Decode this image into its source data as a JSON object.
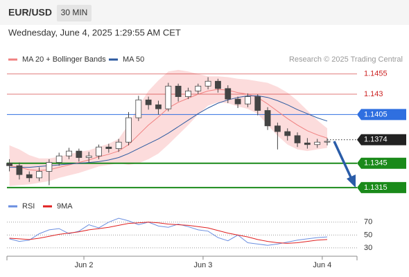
{
  "header": {
    "symbol": "EUR/USD",
    "timeframe": "30 MIN",
    "datetime": "Wednesday, June 4, 2025 1:29:55 AM CET"
  },
  "chart_data": [
    {
      "type": "candlestick",
      "source": "Research © 2025 Trading Central",
      "x": [
        -15,
        -13,
        -11,
        -9,
        -7,
        -5,
        -3,
        -1,
        1,
        3,
        5,
        7,
        9,
        11,
        13,
        15,
        17,
        19,
        21,
        23,
        25,
        27,
        29,
        31,
        33,
        35,
        37,
        39,
        41,
        43,
        45,
        47,
        49
      ],
      "open": [
        1.1345,
        1.1342,
        1.1331,
        1.1327,
        1.1335,
        1.1346,
        1.1354,
        1.136,
        1.1352,
        1.1354,
        1.1365,
        1.1363,
        1.1371,
        1.1401,
        1.1423,
        1.1417,
        1.1412,
        1.144,
        1.1427,
        1.1434,
        1.144,
        1.1446,
        1.1437,
        1.1424,
        1.1418,
        1.1427,
        1.141,
        1.1391,
        1.1384,
        1.1379,
        1.137,
        1.1368,
        1.1371
      ],
      "high": [
        1.135,
        1.1346,
        1.1335,
        1.134,
        1.135,
        1.1358,
        1.1364,
        1.1363,
        1.1359,
        1.1368,
        1.1369,
        1.1375,
        1.1408,
        1.1428,
        1.1427,
        1.1422,
        1.1444,
        1.1443,
        1.1438,
        1.1443,
        1.1451,
        1.1449,
        1.1441,
        1.1427,
        1.1431,
        1.143,
        1.1414,
        1.1395,
        1.1388,
        1.1383,
        1.1376,
        1.1375,
        1.1376
      ],
      "low": [
        1.1335,
        1.1325,
        1.1322,
        1.1323,
        1.1318,
        1.1342,
        1.135,
        1.1347,
        1.1346,
        1.135,
        1.1358,
        1.1359,
        1.1367,
        1.1397,
        1.1411,
        1.1405,
        1.1409,
        1.1421,
        1.1424,
        1.143,
        1.1436,
        1.1432,
        1.1419,
        1.1413,
        1.1414,
        1.1404,
        1.1386,
        1.1362,
        1.1373,
        1.1365,
        1.1363,
        1.1364,
        1.1367
      ],
      "close": [
        1.1342,
        1.1331,
        1.1327,
        1.1335,
        1.1346,
        1.1354,
        1.136,
        1.1352,
        1.1354,
        1.1365,
        1.1363,
        1.1371,
        1.1401,
        1.1423,
        1.1417,
        1.1412,
        1.144,
        1.1427,
        1.1434,
        1.144,
        1.1446,
        1.1437,
        1.1424,
        1.1418,
        1.1427,
        1.141,
        1.1391,
        1.1384,
        1.1379,
        1.137,
        1.1368,
        1.1371,
        1.1372
      ],
      "up_color": "#ffffff",
      "down_color": "#444444",
      "wick_color": "#444444",
      "series": [
        {
          "name": "MA 20 + Bollinger Bands",
          "color": "#f08080",
          "band_color": "#fbd3d3",
          "values": [
            1.1342,
            1.134,
            1.1337,
            1.1336,
            1.1337,
            1.134,
            1.1343,
            1.1346,
            1.1349,
            1.1353,
            1.1356,
            1.136,
            1.1368,
            1.138,
            1.1392,
            1.1402,
            1.1413,
            1.142,
            1.1425,
            1.143,
            1.1434,
            1.1436,
            1.1435,
            1.1432,
            1.143,
            1.1426,
            1.1418,
            1.1409,
            1.14,
            1.1392,
            1.1385,
            1.138,
            1.1376
          ],
          "upper": [
            1.1367,
            1.1362,
            1.1355,
            1.1351,
            1.1351,
            1.1353,
            1.1356,
            1.1359,
            1.1361,
            1.1365,
            1.1369,
            1.1375,
            1.1393,
            1.1415,
            1.1434,
            1.1447,
            1.1458,
            1.146,
            1.1458,
            1.1455,
            1.1452,
            1.1452,
            1.1451,
            1.1449,
            1.1448,
            1.1446,
            1.1444,
            1.1439,
            1.1432,
            1.1422,
            1.141,
            1.1398,
            1.1388
          ],
          "lower": [
            1.1317,
            1.1318,
            1.1319,
            1.1321,
            1.1323,
            1.1327,
            1.133,
            1.1333,
            1.1337,
            1.1341,
            1.1343,
            1.1345,
            1.1343,
            1.1345,
            1.135,
            1.1357,
            1.1368,
            1.138,
            1.1392,
            1.1405,
            1.1416,
            1.142,
            1.1419,
            1.1415,
            1.1412,
            1.1406,
            1.1392,
            1.1379,
            1.1368,
            1.1362,
            1.136,
            1.1362,
            1.1364
          ]
        },
        {
          "name": "MA 50",
          "color": "#2c5aa0",
          "values": [
            1.134,
            1.134,
            1.134,
            1.1341,
            1.1342,
            1.1343,
            1.1344,
            1.1345,
            1.1346,
            1.1347,
            1.1349,
            1.1352,
            1.1357,
            1.1363,
            1.1369,
            1.1375,
            1.1382,
            1.139,
            1.1398,
            1.1406,
            1.1413,
            1.1419,
            1.1423,
            1.1426,
            1.1428,
            1.1428,
            1.1426,
            1.1422,
            1.1417,
            1.1411,
            1.1406,
            1.1401,
            1.1397
          ]
        }
      ],
      "levels": [
        {
          "value": 1.1455,
          "color": "#cc2222",
          "style": "text"
        },
        {
          "value": 1.143,
          "color": "#cc2222",
          "style": "text"
        },
        {
          "value": 1.1405,
          "color": "#2f6fe0",
          "style": "box"
        },
        {
          "value": 1.1374,
          "color": "#222222",
          "style": "dotted"
        },
        {
          "value": 1.1345,
          "color": "#1a8a1a",
          "style": "box"
        },
        {
          "value": 1.1315,
          "color": "#1a8a1a",
          "style": "box"
        }
      ],
      "xlim": [
        -15.5,
        55
      ],
      "ylim": [
        1.1303,
        1.1465
      ],
      "xticks": [
        {
          "value": 0,
          "label": "Jun 2"
        },
        {
          "value": 24,
          "label": "Jun 3"
        },
        {
          "value": 48,
          "label": "Jun 4"
        }
      ]
    },
    {
      "type": "line",
      "x": [
        -15,
        -13,
        -11,
        -9,
        -7,
        -5,
        -3,
        -1,
        1,
        3,
        5,
        7,
        9,
        11,
        13,
        15,
        17,
        19,
        21,
        23,
        25,
        27,
        29,
        31,
        33,
        35,
        37,
        39,
        41,
        43,
        45,
        47,
        49
      ],
      "series": [
        {
          "name": "RSI",
          "color": "#6a8ee0",
          "values": [
            44,
            40,
            42,
            52,
            58,
            60,
            52,
            56,
            66,
            61,
            70,
            76,
            72,
            66,
            70,
            64,
            62,
            67,
            63,
            58,
            56,
            46,
            41,
            50,
            38,
            36,
            34,
            36,
            39,
            42,
            44,
            46,
            47
          ]
        },
        {
          "name": "9MA",
          "color": "#e02020",
          "values": [
            45,
            44,
            43,
            45,
            48,
            51,
            53,
            55,
            58,
            60,
            62,
            65,
            68,
            69,
            70,
            69,
            67,
            66,
            65,
            63,
            61,
            57,
            53,
            50,
            47,
            43,
            40,
            38,
            37,
            38,
            40,
            42,
            43
          ]
        }
      ],
      "xlim": [
        -15.5,
        55
      ],
      "ylim": [
        17,
        87
      ],
      "yticks": [
        30,
        50,
        70
      ],
      "grid": true
    }
  ]
}
